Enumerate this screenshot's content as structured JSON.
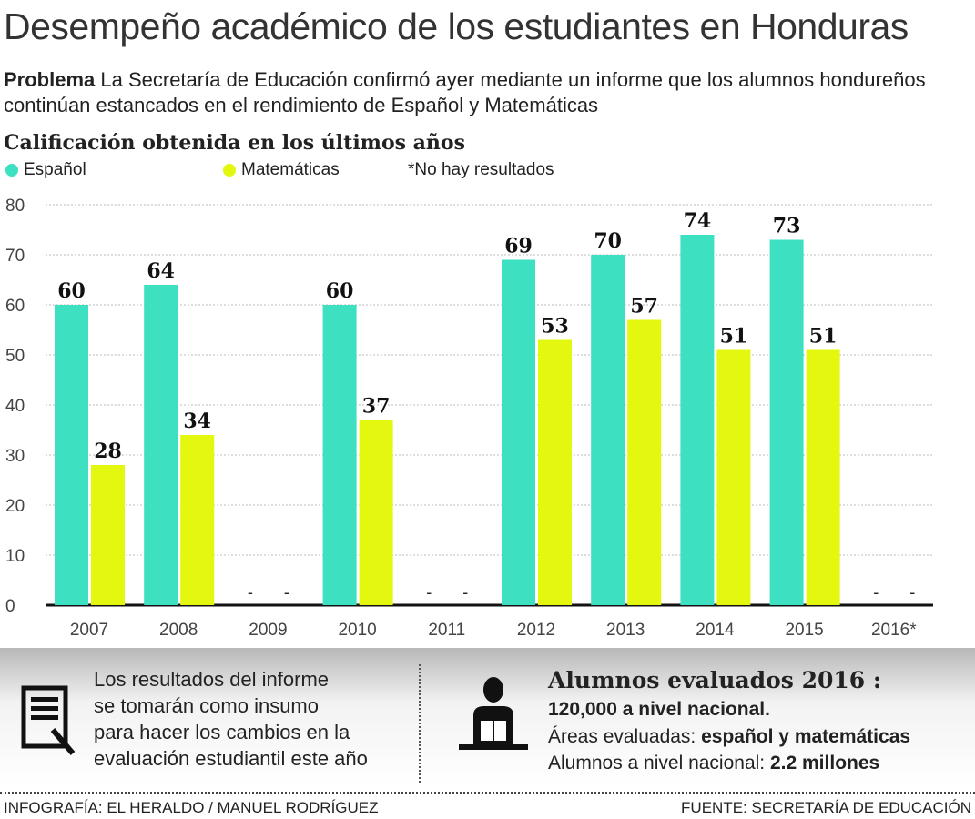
{
  "title": "Desempeño académico de los estudiantes en Honduras",
  "intro": {
    "label": "Problema",
    "text": " La Secretaría de Educación confirmó ayer mediante un informe que los alumnos hondureños continúan estancados en el rendimiento de Español y Matemáticas"
  },
  "chart_data": {
    "type": "bar",
    "title": "Calificación obtenida en los últimos años",
    "categories": [
      "2007",
      "2008",
      "2009",
      "2010",
      "2011",
      "2012",
      "2013",
      "2014",
      "2015",
      "2016*"
    ],
    "series": [
      {
        "name": "Español",
        "color": "#3de0c0",
        "values": [
          60,
          64,
          null,
          60,
          null,
          69,
          70,
          74,
          73,
          null
        ]
      },
      {
        "name": "Matemáticas",
        "color": "#e3f70f",
        "values": [
          28,
          34,
          null,
          37,
          null,
          53,
          57,
          51,
          51,
          null
        ]
      }
    ],
    "note": "*No hay resultados",
    "missing_label": "-",
    "yticks": [
      0,
      10,
      20,
      30,
      40,
      50,
      60,
      70,
      80
    ],
    "ylim": [
      0,
      80
    ],
    "grid": true,
    "legend": "top-left"
  },
  "info": {
    "left_text": [
      "Los resultados del informe",
      "se tomarán como insumo",
      "para hacer los cambios en la",
      "evaluación estudiantil este año"
    ],
    "right_title": "Alumnos evaluados 2016 :",
    "line1": "120,000 a nivel nacional.",
    "line2_label": "Áreas evaluadas: ",
    "line2_value": "español y matemáticas",
    "line3_label": "Alumnos a nivel nacional: ",
    "line3_value": "2.2 millones",
    "left_icon": "document-pen-icon",
    "right_icon": "student-reading-icon"
  },
  "footer": {
    "credit": "INFOGRAFÍA: EL HERALDO / MANUEL RODRÍGUEZ",
    "source": "FUENTE: SECRETARÍA DE EDUCACIÓN"
  }
}
